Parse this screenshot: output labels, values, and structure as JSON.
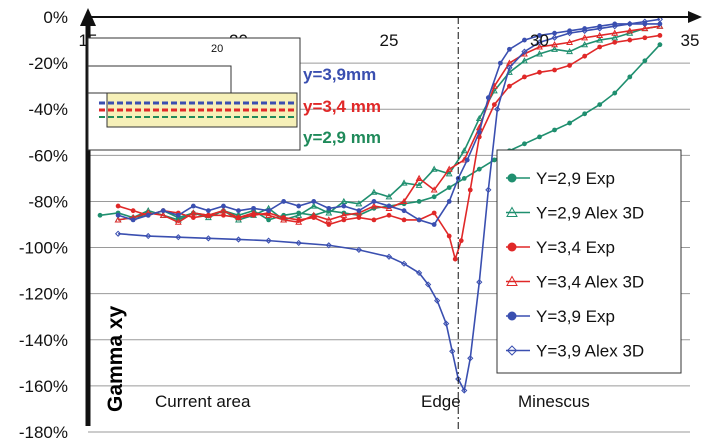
{
  "chart_data": {
    "type": "line",
    "ylabel": "Gamma xy",
    "xlim": [
      15,
      35
    ],
    "ylim": [
      -180,
      0
    ],
    "x_ticks": [
      "15",
      "20",
      "25",
      "30",
      "35"
    ],
    "y_ticks": [
      "0%",
      "-20%",
      "-40%",
      "-60%",
      "-80%",
      "-100%",
      "-120%",
      "-140%",
      "-160%",
      "-180%"
    ],
    "y_tick_values": [
      0,
      -20,
      -40,
      -60,
      -80,
      -100,
      -120,
      -140,
      -160,
      -180
    ],
    "grid": "horizontal",
    "legend_placement": "right",
    "annotations": {
      "current_area": "Current area",
      "edge": "Edge",
      "minescus": "Minescus",
      "inset_tiny": "20"
    },
    "edge_x": 27.3,
    "inset_labels": [
      {
        "text": "y=3,9mm",
        "color": "#3a4fb0"
      },
      {
        "text": "y=3,4 mm",
        "color": "#e02828"
      },
      {
        "text": "y=2,9 mm",
        "color": "#1f8a5a"
      }
    ],
    "series": [
      {
        "name": "Y=2,9 Exp",
        "color": "#1f8f6f",
        "marker": "dot",
        "x": [
          15.4,
          16,
          16.5,
          17,
          17.5,
          18,
          18.5,
          19,
          19.5,
          20,
          20.5,
          21,
          21.5,
          22,
          22.5,
          23,
          23.5,
          24,
          24.5,
          25,
          25.5,
          26,
          26.5,
          27,
          27.5,
          28,
          28.5,
          29,
          29.5,
          30,
          30.5,
          31,
          31.5,
          32,
          32.5,
          33,
          33.5,
          34
        ],
        "y": [
          -86,
          -85,
          -87,
          -86,
          -84,
          -87,
          -85,
          -86,
          -84,
          -86,
          -84,
          -88,
          -86,
          -85,
          -86,
          -84,
          -85,
          -86,
          -83,
          -82,
          -81,
          -80,
          -78,
          -74,
          -70,
          -66,
          -62,
          -58,
          -55,
          -52,
          -49,
          -46,
          -42,
          -38,
          -33,
          -26,
          -19,
          -12
        ]
      },
      {
        "name": "Y=2,9 Alex 3D",
        "color": "#1f8f6f",
        "marker": "triangle",
        "x": [
          16,
          16.5,
          17,
          17.5,
          18,
          18.5,
          19,
          19.5,
          20,
          20.5,
          21,
          21.5,
          22,
          22.5,
          23,
          23.5,
          24,
          24.5,
          25,
          25.5,
          26,
          26.5,
          27,
          27.5,
          28,
          28.5,
          29,
          29.5,
          30,
          30.5,
          31,
          31.5,
          32,
          32.5,
          33,
          33.5,
          34
        ],
        "y": [
          -88,
          -87,
          -84,
          -86,
          -88,
          -85,
          -87,
          -84,
          -88,
          -86,
          -83,
          -88,
          -86,
          -82,
          -85,
          -80,
          -81,
          -76,
          -78,
          -72,
          -73,
          -66,
          -68,
          -58,
          -44,
          -32,
          -24,
          -19,
          -16,
          -14,
          -15,
          -12,
          -10,
          -9,
          -7,
          -5,
          -4
        ]
      },
      {
        "name": "Y=3,4 Exp",
        "color": "#e02828",
        "marker": "dot",
        "x": [
          16,
          16.5,
          17,
          17.5,
          18,
          18.5,
          19,
          19.5,
          20,
          20.5,
          21,
          21.5,
          22,
          22.5,
          23,
          23.5,
          24,
          24.5,
          25,
          25.5,
          26,
          26.5,
          27,
          27.2,
          27.4,
          27.7,
          28,
          28.5,
          29,
          29.5,
          30,
          30.5,
          31,
          31.5,
          32,
          32.5,
          33,
          33.5,
          34
        ],
        "y": [
          -82,
          -84,
          -86,
          -84,
          -85,
          -87,
          -86,
          -86,
          -87,
          -86,
          -85,
          -87,
          -88,
          -87,
          -90,
          -88,
          -87,
          -88,
          -86,
          -88,
          -88,
          -85,
          -95,
          -105,
          -97,
          -75,
          -52,
          -38,
          -30,
          -26,
          -24,
          -23,
          -21,
          -17,
          -13,
          -11,
          -10,
          -9,
          -8
        ]
      },
      {
        "name": "Y=3,4 Alex 3D",
        "color": "#e02828",
        "marker": "triangle",
        "x": [
          16,
          16.5,
          17,
          17.5,
          18,
          18.5,
          19,
          19.5,
          20,
          20.5,
          21,
          21.5,
          22,
          22.5,
          23,
          23.5,
          24,
          24.5,
          25,
          25.5,
          26,
          26.5,
          27,
          27.5,
          28,
          28.5,
          29,
          29.5,
          30,
          30.5,
          31,
          31.5,
          32,
          32.5,
          33,
          33.5,
          34
        ],
        "y": [
          -88,
          -87,
          -85,
          -86,
          -89,
          -85,
          -86,
          -84,
          -87,
          -85,
          -86,
          -88,
          -89,
          -86,
          -88,
          -86,
          -85,
          -82,
          -83,
          -80,
          -70,
          -75,
          -66,
          -62,
          -48,
          -30,
          -20,
          -16,
          -13,
          -12,
          -11,
          -9,
          -8,
          -7,
          -6,
          -5,
          -4
        ]
      },
      {
        "name": "Y=3,9 Exp",
        "color": "#3a4fb0",
        "marker": "dot",
        "x": [
          16,
          16.5,
          17,
          17.5,
          18,
          18.5,
          19,
          19.5,
          20,
          20.5,
          21,
          21.5,
          22,
          22.5,
          23,
          23.5,
          24,
          24.5,
          25,
          25.5,
          26,
          26.5,
          27,
          27.3,
          27.6,
          28,
          28.3,
          28.7,
          29,
          29.5,
          30,
          30.5,
          31,
          31.5,
          32,
          32.5,
          33,
          33.5,
          34
        ],
        "y": [
          -86,
          -88,
          -86,
          -84,
          -86,
          -82,
          -84,
          -82,
          -84,
          -83,
          -84,
          -80,
          -82,
          -80,
          -83,
          -82,
          -84,
          -80,
          -82,
          -84,
          -88,
          -90,
          -80,
          -70,
          -62,
          -50,
          -35,
          -20,
          -14,
          -10,
          -8,
          -7,
          -6,
          -5,
          -4,
          -3,
          -3,
          -3,
          -3
        ]
      },
      {
        "name": "Y=3,9 Alex 3D",
        "color": "#3a4fb0",
        "marker": "diamond",
        "x": [
          16,
          17,
          18,
          19,
          20,
          21,
          22,
          23,
          24,
          25,
          25.5,
          26,
          26.3,
          26.6,
          26.9,
          27.1,
          27.3,
          27.5,
          27.7,
          28,
          28.3,
          28.6,
          29,
          29.5,
          30,
          30.5,
          31,
          31.5,
          32,
          32.5,
          33,
          33.5,
          34
        ],
        "y": [
          -94,
          -95,
          -95.5,
          -96,
          -96.5,
          -97,
          -98,
          -99,
          -101,
          -104,
          -107,
          -111,
          -116,
          -123,
          -133,
          -145,
          -157,
          -162,
          -148,
          -115,
          -75,
          -40,
          -22,
          -15,
          -11,
          -9,
          -7,
          -6,
          -5,
          -4,
          -3,
          -2,
          -1
        ]
      }
    ]
  }
}
